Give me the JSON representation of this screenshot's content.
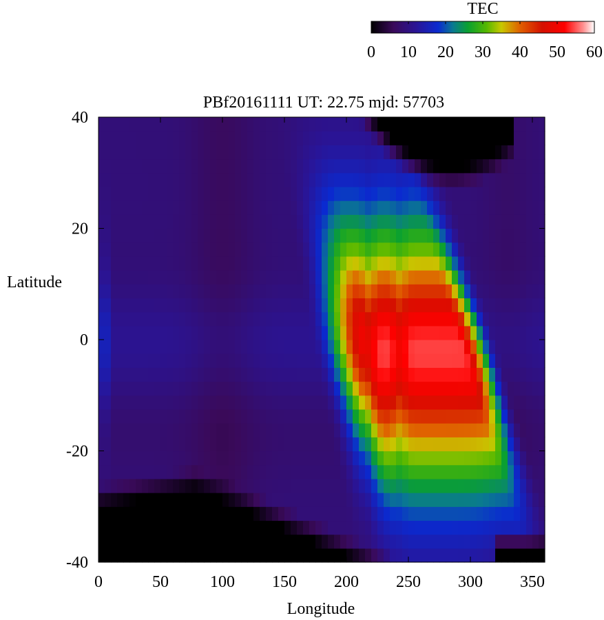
{
  "chart_data": {
    "type": "heatmap",
    "title": "PBf20161111  UT: 22.75  mjd: 57703",
    "xlabel": "Longitude",
    "ylabel": "Latitude",
    "xlim": [
      0,
      360
    ],
    "ylim": [
      -40,
      40
    ],
    "x_ticks": [
      0,
      50,
      100,
      150,
      200,
      250,
      300,
      350
    ],
    "y_ticks": [
      -40,
      -20,
      0,
      20,
      40
    ],
    "grid": false,
    "colorbar": {
      "label": "TEC",
      "range": [
        0,
        60
      ],
      "ticks": [
        0,
        10,
        20,
        30,
        40,
        50,
        60
      ],
      "placement": "top-right",
      "colormap": [
        [
          0,
          "#000000"
        ],
        [
          6,
          "#3a0a5a"
        ],
        [
          12,
          "#2a1495"
        ],
        [
          18,
          "#0a2ad0"
        ],
        [
          22,
          "#0a7a90"
        ],
        [
          26,
          "#0aa030"
        ],
        [
          31,
          "#55b800"
        ],
        [
          35,
          "#c8c800"
        ],
        [
          40,
          "#e06000"
        ],
        [
          46,
          "#d41000"
        ],
        [
          52,
          "#ff0000"
        ],
        [
          57,
          "#ff9090"
        ],
        [
          60,
          "#ffffff"
        ]
      ]
    },
    "grid_resolution": {
      "dlon": 5,
      "dlat": 2.5
    },
    "features": {
      "peak": {
        "lon": 255,
        "lat": -2,
        "value": 52
      },
      "equatorial_anomaly_band": "longitudes 150-320, peak TEC ~52 near 250E",
      "nightside_background": "TEC ~5-12 over longitudes 0-140"
    }
  }
}
